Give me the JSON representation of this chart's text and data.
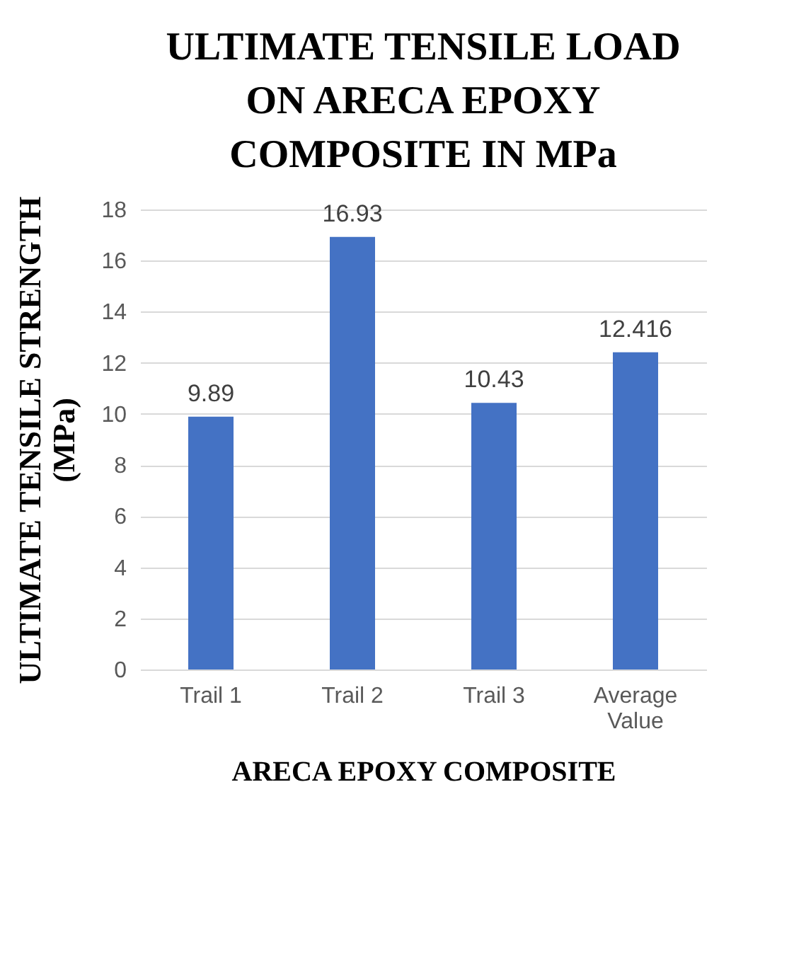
{
  "chart_data": {
    "type": "bar",
    "title": "ULTIMATE TENSILE LOAD ON ARECA EPOXY COMPOSITE IN MPa",
    "xlabel": "ARECA EPOXY COMPOSITE",
    "ylabel": "ULTIMATE TENSILE STRENGTH (MPa)",
    "categories": [
      "Trail 1",
      "Trail 2",
      "Trail 3",
      "Average Value"
    ],
    "values": [
      9.89,
      16.93,
      10.43,
      12.416
    ],
    "color": "#4472c4",
    "ylim": [
      0,
      18
    ],
    "yticks": [
      0,
      2,
      4,
      6,
      8,
      10,
      12,
      14,
      16,
      18
    ],
    "grid": "y",
    "data_labels": true
  }
}
